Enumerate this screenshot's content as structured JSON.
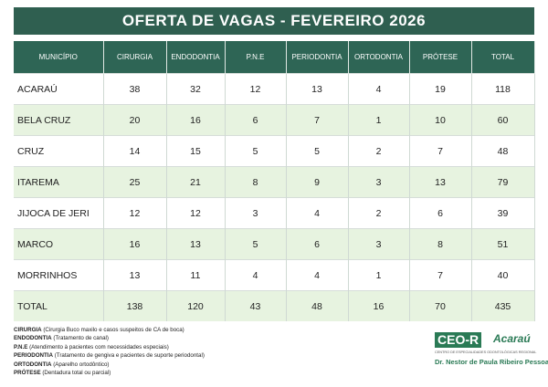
{
  "header": {
    "title": "OFERTA DE VAGAS - FEVEREIRO 2026"
  },
  "table": {
    "columns": [
      "MUNICÍPIO",
      "CIRURGIA",
      "ENDODONTIA",
      "P.N.E",
      "PERIODONTIA",
      "ORTODONTIA",
      "PRÓTESE",
      "TOTAL"
    ],
    "rows": [
      [
        "ACARAÚ",
        38,
        32,
        12,
        13,
        4,
        19,
        118
      ],
      [
        "BELA CRUZ",
        20,
        16,
        6,
        7,
        1,
        10,
        60
      ],
      [
        "CRUZ",
        14,
        15,
        5,
        5,
        2,
        7,
        48
      ],
      [
        "ITAREMA",
        25,
        21,
        8,
        9,
        3,
        13,
        79
      ],
      [
        "JIJOCA DE JERI",
        12,
        12,
        3,
        4,
        2,
        6,
        39
      ],
      [
        "MARCO",
        16,
        13,
        5,
        6,
        3,
        8,
        51
      ],
      [
        "MORRINHOS",
        13,
        11,
        4,
        4,
        1,
        7,
        40
      ],
      [
        "TOTAL",
        138,
        120,
        43,
        48,
        16,
        70,
        435
      ]
    ]
  },
  "notes": [
    {
      "term": "CIRURGIA",
      "text": "(Cirurgia Buco maxilo e casos suspeitos de CA de boca)"
    },
    {
      "term": "ENDODONTIA",
      "text": "(Tratamento de canal)"
    },
    {
      "term": "P.N.E",
      "text": "(Atendimento à pacientes com necessidades especiais)"
    },
    {
      "term": "PERIODONTIA",
      "text": "(Tratamento de gengiva e pacientes de suporte periodontal)"
    },
    {
      "term": "ORTODONTIA",
      "text": "(Aparelho ortodôntico)"
    },
    {
      "term": "PRÓTESE",
      "text": "(Dentadura total ou parcial)"
    }
  ],
  "logo": {
    "mark": "CEO-R",
    "city": "Acaraú",
    "subtitle": "CENTRO DE ESPECIALIDADES ODONTOLÓGICAS REGIONAL",
    "name": "Dr. Nestor de Paula Ribeiro Pessoa"
  }
}
